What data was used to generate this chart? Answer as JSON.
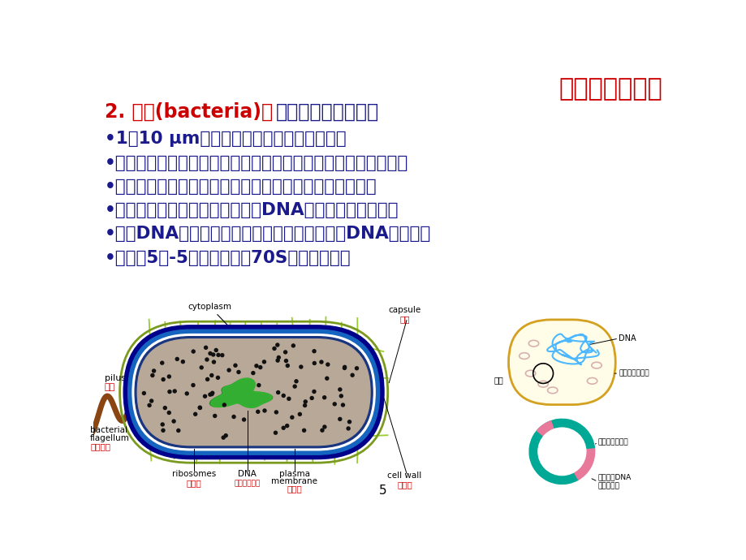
{
  "title": "细胞的基本概念",
  "title_color": "#cc0000",
  "title_fontsize": 22,
  "heading_red": "2. 细菌(bacteria)是",
  "heading_blue": "原核细胞的典型代表",
  "heading_color": "#1a1a8c",
  "heading_red_color": "#cc0000",
  "heading_fontsize": 17,
  "bullet_points": [
    "•1～10 μm大小，分为球菌、杆菌和螺旋菌",
    "•细胞壁的主要成分为肽聚糖；有些菌壁外有多肽和多糖组成荚膜",
    "•细胞膜常分为内膜、外膜和膜间隙；内膜上有呼吸链酶等",
    "•细胞膜有时内陷形成中间体，与DNA复制和细胞分裂有关",
    "•环状DNA分子，无内含子；胞质中常有环状的DNA（质粒）",
    "•每个菌5千-5万个核糖体（70S），大多游离"
  ],
  "bullet_color": "#1a1a8c",
  "bullet_fontsize": 15.5,
  "background_color": "#ffffff"
}
